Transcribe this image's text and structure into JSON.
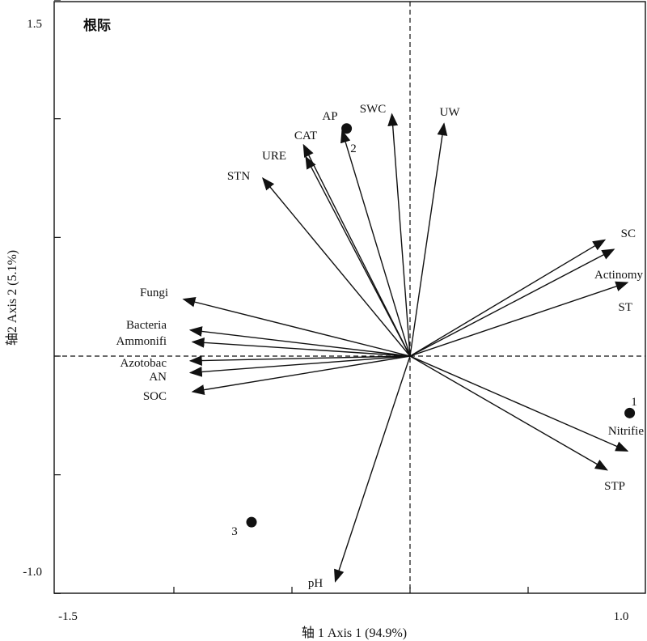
{
  "chart_data": {
    "type": "scatter",
    "panel_label": "根际",
    "xlabel": "轴 1 Axis 1 (94.9%)",
    "ylabel": "轴2 Axis 2 (5.1%)",
    "xlim": [
      -1.5,
      1.0
    ],
    "ylim": [
      -1.0,
      1.5
    ],
    "x_tick_labels": [
      "-1.5",
      "1.0"
    ],
    "y_tick_labels": [
      "1.5",
      "-1.0"
    ],
    "arrows": [
      {
        "name": "UW",
        "x": 0.15,
        "y": 0.98
      },
      {
        "name": "SWC",
        "x": -0.08,
        "y": 1.02
      },
      {
        "name": "AP",
        "x": -0.3,
        "y": 0.95
      },
      {
        "name": "CAT",
        "x": -0.47,
        "y": 0.89
      },
      {
        "name": "URE",
        "x": -0.46,
        "y": 0.84
      },
      {
        "name": "STN",
        "x": -0.65,
        "y": 0.75
      },
      {
        "name": "SC",
        "x": 0.86,
        "y": 0.49
      },
      {
        "name": "Actinomy",
        "x": 0.9,
        "y": 0.45
      },
      {
        "name": "ST",
        "x": 0.96,
        "y": 0.31
      },
      {
        "name": "Fungi",
        "x": -1.0,
        "y": 0.24
      },
      {
        "name": "Bacteria",
        "x": -0.97,
        "y": 0.11
      },
      {
        "name": "Ammonifi",
        "x": -0.96,
        "y": 0.06
      },
      {
        "name": "Azotobac",
        "x": -0.97,
        "y": -0.02
      },
      {
        "name": "AN",
        "x": -0.97,
        "y": -0.07
      },
      {
        "name": "SOC",
        "x": -0.96,
        "y": -0.15
      },
      {
        "name": "Nitrifie",
        "x": 0.96,
        "y": -0.4
      },
      {
        "name": "STP",
        "x": 0.87,
        "y": -0.48
      },
      {
        "name": "pH",
        "x": -0.33,
        "y": -0.95
      }
    ],
    "points": [
      {
        "name": "1",
        "x": 0.97,
        "y": -0.24
      },
      {
        "name": "2",
        "x": -0.28,
        "y": 0.96
      },
      {
        "name": "3",
        "x": -0.7,
        "y": -0.7
      }
    ]
  }
}
